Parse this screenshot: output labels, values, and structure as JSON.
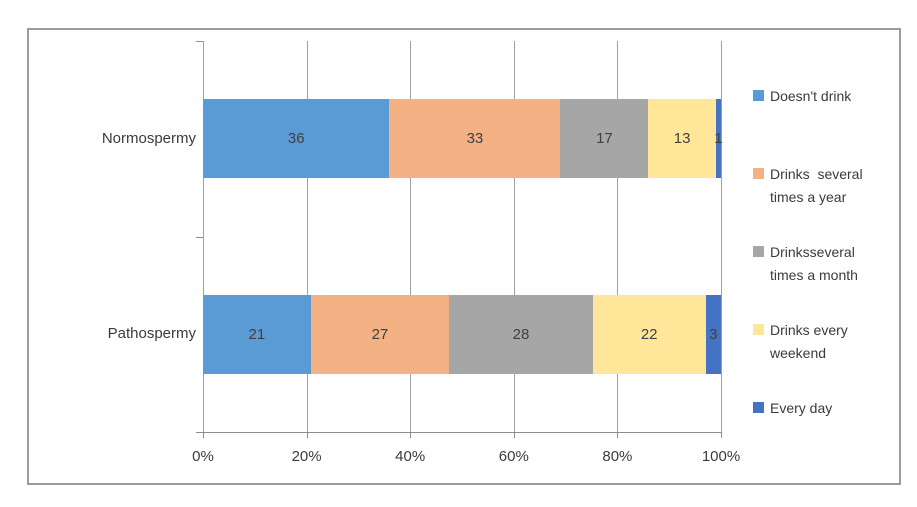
{
  "chart_data": {
    "type": "bar",
    "variant": "stacked-100-horizontal",
    "title": "",
    "categories": [
      "Normospermy",
      "Pathospermy"
    ],
    "series": [
      {
        "name": "Doesn't drink",
        "color": "#5B9BD5",
        "values": [
          36,
          21
        ]
      },
      {
        "name": "Drinks  several times a year",
        "color": "#F4B183",
        "values": [
          33,
          27
        ]
      },
      {
        "name": "Drinksseveral times a month",
        "color": "#A6A6A6",
        "values": [
          17,
          28
        ]
      },
      {
        "name": "Drinks every weekend",
        "color": "#FFE699",
        "values": [
          13,
          22
        ]
      },
      {
        "name": "Every day",
        "color": "#4472C4",
        "values": [
          1,
          3
        ]
      }
    ],
    "x_ticks": [
      "0%",
      "20%",
      "40%",
      "60%",
      "80%",
      "100%"
    ],
    "xlim": [
      0,
      100
    ],
    "grid": "vertical-major",
    "legend_position": "right",
    "data_labels": true
  },
  "colors": {
    "frame_border": "#9C9C9C",
    "gridline": "#A0A0A0",
    "axis": "#8E8E8E",
    "label_text": "#404040"
  }
}
